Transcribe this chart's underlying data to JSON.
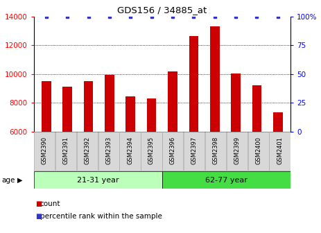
{
  "title": "GDS156 / 34885_at",
  "samples": [
    "GSM2390",
    "GSM2391",
    "GSM2392",
    "GSM2393",
    "GSM2394",
    "GSM2395",
    "GSM2396",
    "GSM2397",
    "GSM2398",
    "GSM2399",
    "GSM2400",
    "GSM2401"
  ],
  "counts": [
    9500,
    9100,
    9500,
    9950,
    8450,
    8300,
    10200,
    12650,
    13300,
    10050,
    9200,
    7350
  ],
  "percentiles": [
    100,
    100,
    100,
    100,
    100,
    100,
    100,
    100,
    100,
    100,
    100,
    100
  ],
  "bar_color": "#cc0000",
  "dot_color": "#3333cc",
  "ylim_left": [
    6000,
    14000
  ],
  "ylim_right": [
    0,
    100
  ],
  "yticks_left": [
    6000,
    8000,
    10000,
    12000,
    14000
  ],
  "yticks_right": [
    0,
    25,
    50,
    75,
    100
  ],
  "group1_label": "21-31 year",
  "group1_count": 6,
  "group2_label": "62-77 year",
  "group2_count": 6,
  "group1_color": "#bbffbb",
  "group2_color": "#44dd44",
  "age_label": "age",
  "legend_count_label": "count",
  "legend_pct_label": "percentile rank within the sample",
  "background_color": "#ffffff",
  "ticklabel_bg_color": "#d8d8d8",
  "ticklabel_border_color": "#aaaaaa"
}
